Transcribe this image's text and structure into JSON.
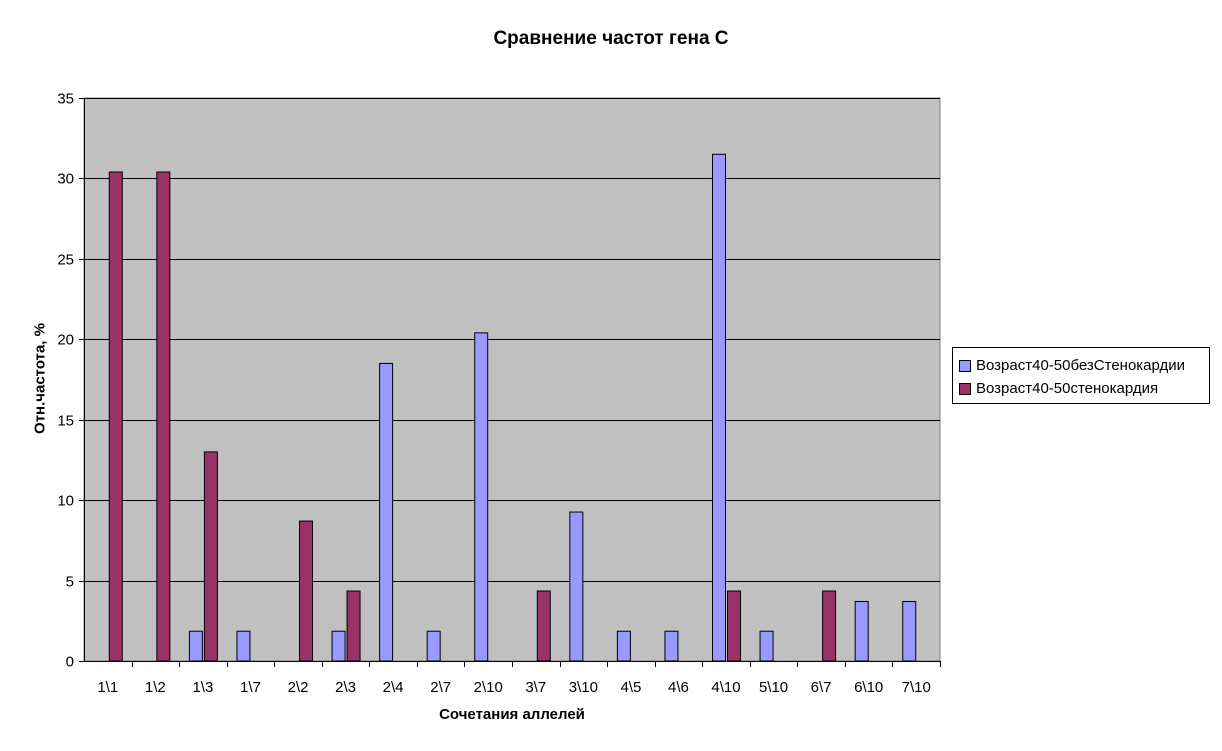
{
  "chart_data": {
    "type": "bar",
    "title": "Сравнение частот гена С",
    "xlabel": "Сочетания аллелей",
    "ylabel": "Отн.частота, %",
    "ylim": [
      0,
      35
    ],
    "yticks": [
      "0",
      "5",
      "10",
      "15",
      "20",
      "25",
      "30",
      "35"
    ],
    "grid": true,
    "legend_position": "right",
    "plot_background": "#c0c0c0",
    "categories": [
      "1\\1",
      "1\\2",
      "1\\3",
      "1\\7",
      "2\\2",
      "2\\3",
      "2\\4",
      "2\\7",
      "2\\10",
      "3\\7",
      "3\\10",
      "4\\5",
      "4\\6",
      "4\\10",
      "5\\10",
      "6\\7",
      "6\\10",
      "7\\10"
    ],
    "series": [
      {
        "name": "Возраст40-50безСтенокардии",
        "color": "#9999ff",
        "values": [
          0,
          0,
          1.85,
          1.85,
          0,
          1.85,
          18.5,
          1.85,
          20.4,
          0,
          9.26,
          1.85,
          1.85,
          31.5,
          1.85,
          0,
          3.7,
          3.7
        ]
      },
      {
        "name": "Возраст40-50стенокардия",
        "color": "#993366",
        "values": [
          30.4,
          30.4,
          13.0,
          0,
          8.7,
          4.35,
          0,
          0,
          0,
          4.35,
          0,
          0,
          0,
          4.35,
          0,
          4.35,
          0,
          0
        ]
      }
    ]
  }
}
